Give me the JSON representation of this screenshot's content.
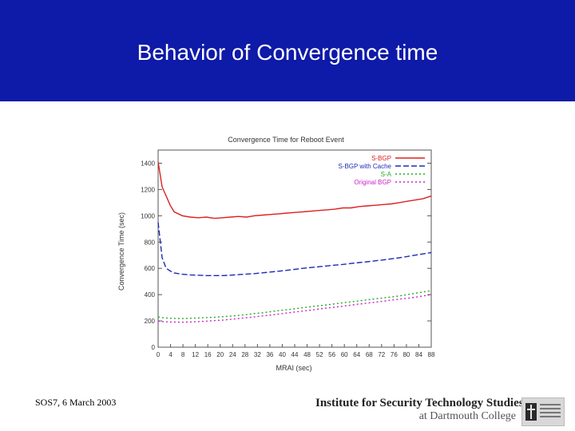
{
  "slide": {
    "title": "Behavior of Convergence time",
    "footer_left": "SOS7, 6 March 2003",
    "institute_line1": "Institute for Security Technology Studies",
    "institute_line2": "at Dartmouth College"
  },
  "colors": {
    "title_band": "#0e1aa8",
    "sbgp": "#dd2020",
    "sbgp_cache": "#1c2ab8",
    "sa": "#22aa22",
    "original_bgp": "#cc22cc"
  },
  "chart_data": {
    "type": "line",
    "title": "Convergence Time for Reboot Event",
    "xlabel": "MRAI (sec)",
    "ylabel": "Convergence Time (sec)",
    "xlim": [
      0,
      68
    ],
    "ylim": [
      0,
      1500
    ],
    "x_ticks": [
      "0",
      "4",
      "8",
      "12",
      "16",
      "20",
      "24",
      "28",
      "32",
      "36",
      "40",
      "44",
      "48",
      "52",
      "56",
      "60",
      "64",
      "68",
      "72",
      "76",
      "80",
      "84",
      "88"
    ],
    "y_ticks": [
      "0",
      "200",
      "400",
      "600",
      "800",
      "1000",
      "1200",
      "1400"
    ],
    "legend_position": "top-right",
    "x": [
      0,
      1,
      2,
      3,
      4,
      6,
      8,
      10,
      12,
      14,
      16,
      18,
      20,
      22,
      24,
      26,
      28,
      30,
      32,
      34,
      36,
      38,
      40,
      42,
      44,
      46,
      48,
      50,
      52,
      54,
      56,
      58,
      60,
      62,
      64,
      66,
      68
    ],
    "series": [
      {
        "name": "S-BGP",
        "color": "#dd2020",
        "style": "solid",
        "values": [
          1410,
          1220,
          1150,
          1080,
          1030,
          1000,
          990,
          985,
          990,
          980,
          985,
          990,
          995,
          990,
          1000,
          1005,
          1010,
          1015,
          1020,
          1025,
          1030,
          1035,
          1040,
          1045,
          1050,
          1060,
          1060,
          1070,
          1075,
          1080,
          1085,
          1090,
          1100,
          1110,
          1120,
          1130,
          1150
        ]
      },
      {
        "name": "S-BGP with Cache",
        "color": "#1c2ab8",
        "style": "dashed",
        "values": [
          950,
          680,
          600,
          580,
          565,
          555,
          550,
          548,
          545,
          545,
          545,
          548,
          552,
          556,
          560,
          566,
          572,
          578,
          585,
          592,
          600,
          606,
          612,
          618,
          624,
          630,
          637,
          644,
          650,
          657,
          664,
          672,
          680,
          690,
          700,
          710,
          720
        ]
      },
      {
        "name": "S-A",
        "color": "#22aa22",
        "style": "dotted",
        "values": [
          230,
          225,
          222,
          220,
          219,
          218,
          220,
          222,
          225,
          228,
          232,
          236,
          242,
          248,
          256,
          262,
          270,
          278,
          285,
          292,
          300,
          308,
          315,
          322,
          330,
          338,
          345,
          352,
          360,
          368,
          375,
          382,
          390,
          400,
          410,
          420,
          430
        ]
      },
      {
        "name": "Original BGP",
        "color": "#cc22cc",
        "style": "dotted",
        "values": [
          200,
          195,
          193,
          192,
          191,
          190,
          192,
          195,
          198,
          202,
          206,
          212,
          218,
          224,
          230,
          238,
          245,
          252,
          260,
          268,
          275,
          282,
          290,
          298,
          305,
          312,
          320,
          328,
          335,
          342,
          350,
          358,
          365,
          372,
          380,
          390,
          400
        ]
      }
    ]
  }
}
